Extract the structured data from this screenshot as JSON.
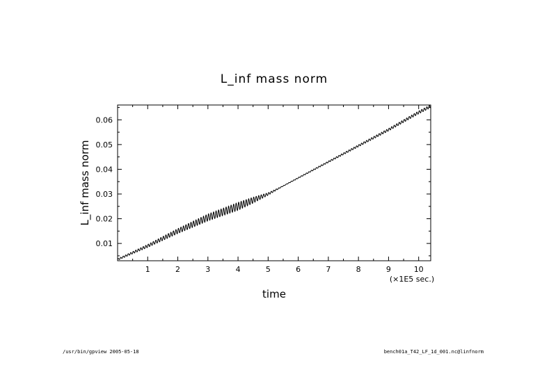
{
  "chart_data": {
    "type": "line",
    "title": "L_inf mass norm",
    "xlabel": "time",
    "xunit_label": "(×1E5 sec.)",
    "ylabel": "L_inf mass norm",
    "xlim": [
      0,
      10.4
    ],
    "ylim": [
      0.003,
      0.066
    ],
    "xticks": [
      "1",
      "2",
      "3",
      "4",
      "5",
      "6",
      "7",
      "8",
      "9",
      "10"
    ],
    "xtick_values": [
      1,
      2,
      3,
      4,
      5,
      6,
      7,
      8,
      9,
      10
    ],
    "yticks": [
      "0.01",
      "0.02",
      "0.03",
      "0.04",
      "0.05",
      "0.06"
    ],
    "ytick_values": [
      0.01,
      0.02,
      0.03,
      0.04,
      0.05,
      0.06
    ],
    "grid": false,
    "series": [
      {
        "color": "#000000",
        "oscillation_amplitude": [
          [
            0,
            0.0003
          ],
          [
            1,
            0.0006
          ],
          [
            2,
            0.001
          ],
          [
            3,
            0.0014
          ],
          [
            4,
            0.0016
          ],
          [
            4.5,
            0.0012
          ],
          [
            5,
            0.0005
          ],
          [
            5.5,
            0.0001
          ],
          [
            6,
            0.0002
          ],
          [
            7,
            0.0003
          ],
          [
            8,
            0.0004
          ],
          [
            9,
            0.0005
          ],
          [
            10.4,
            0.0006
          ]
        ],
        "x": [
          0,
          1,
          2,
          3,
          4,
          5,
          6,
          7,
          8,
          9,
          10,
          10.4
        ],
        "y": [
          0.0035,
          0.009,
          0.015,
          0.0205,
          0.025,
          0.03,
          0.0365,
          0.043,
          0.0495,
          0.056,
          0.063,
          0.0655
        ]
      }
    ]
  },
  "footer": {
    "left": "/usr/bin/gpview  2005-05-18",
    "right": "bench01a_T42_LF_1d_001.nc@linfnorm"
  }
}
